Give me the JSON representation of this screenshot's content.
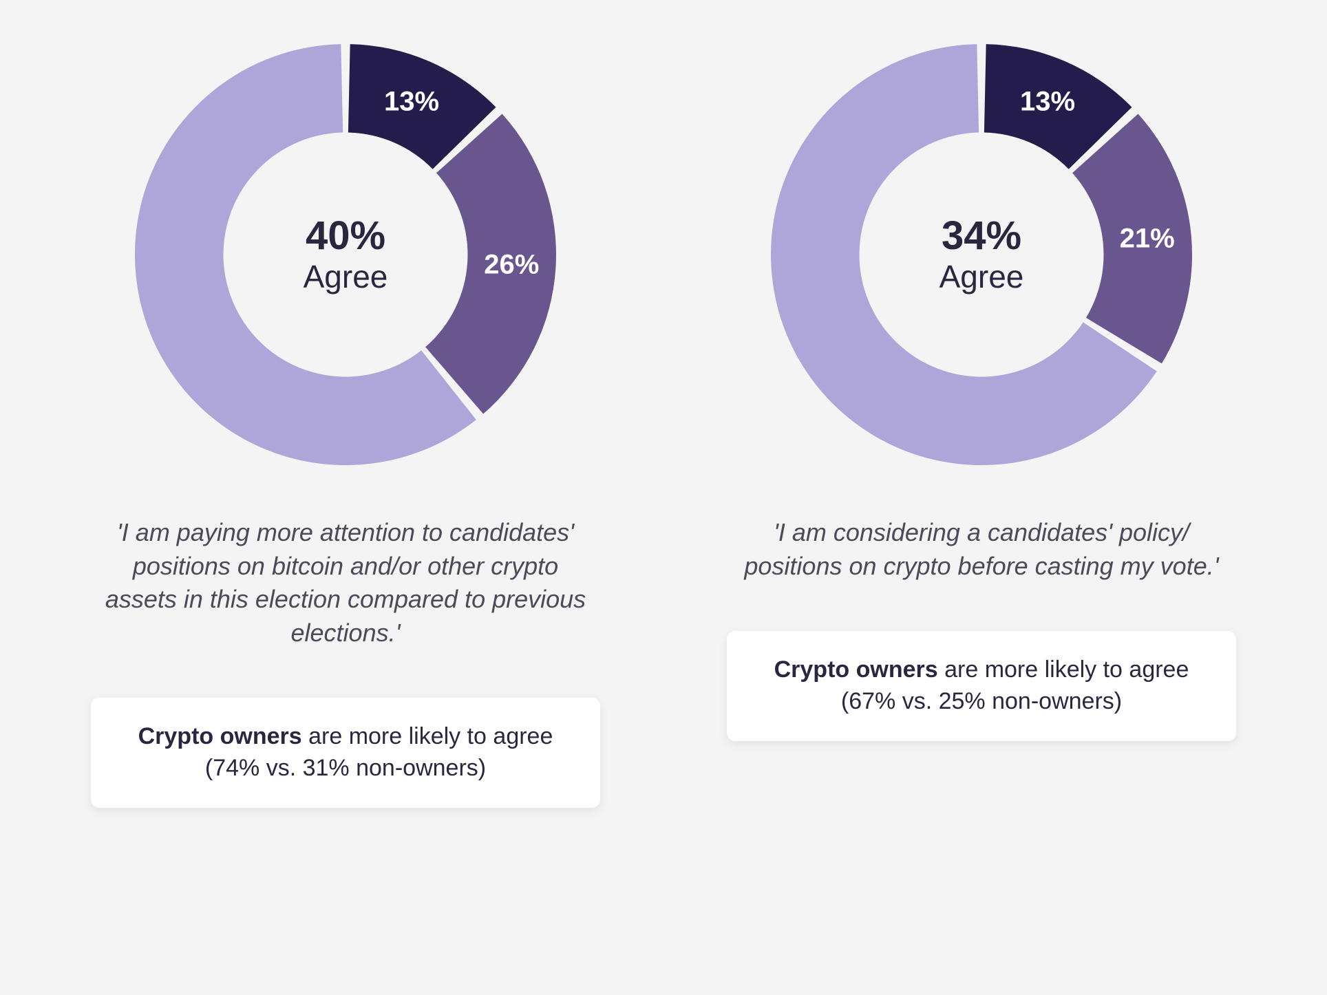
{
  "background_color": "#f4f4f5",
  "charts": [
    {
      "type": "donut",
      "center_percent": "40%",
      "center_label": "Agree",
      "slices": [
        {
          "value": 13,
          "label": "13%",
          "color": "#241c4b"
        },
        {
          "value": 26,
          "label": "26%",
          "color": "#69568f"
        },
        {
          "value": 61,
          "label": "",
          "color": "#aea6d9"
        }
      ],
      "inner_radius_ratio": 0.58,
      "gap_deg": 2.5,
      "start_angle_deg": 0,
      "quote": "'I am paying more attention to candidates' positions on bitcoin and/or other crypto assets in this election compared to previous elections.'",
      "callout_bold": "Crypto owners",
      "callout_rest": " are more likely to agree (74% vs. 31% non-owners)"
    },
    {
      "type": "donut",
      "center_percent": "34%",
      "center_label": "Agree",
      "slices": [
        {
          "value": 13,
          "label": "13%",
          "color": "#241c4b"
        },
        {
          "value": 21,
          "label": "21%",
          "color": "#69568f"
        },
        {
          "value": 66,
          "label": "",
          "color": "#aea6d9"
        }
      ],
      "inner_radius_ratio": 0.58,
      "gap_deg": 2.5,
      "start_angle_deg": 0,
      "quote": "'I am considering a candidates' policy/ positions on crypto before casting my vote.'",
      "callout_bold": "Crypto owners",
      "callout_rest": " are more likely to agree (67% vs. 25% non-owners)"
    }
  ],
  "text_color": "#2a2640",
  "quote_color": "#4a4a58",
  "callout_bg": "#ffffff"
}
